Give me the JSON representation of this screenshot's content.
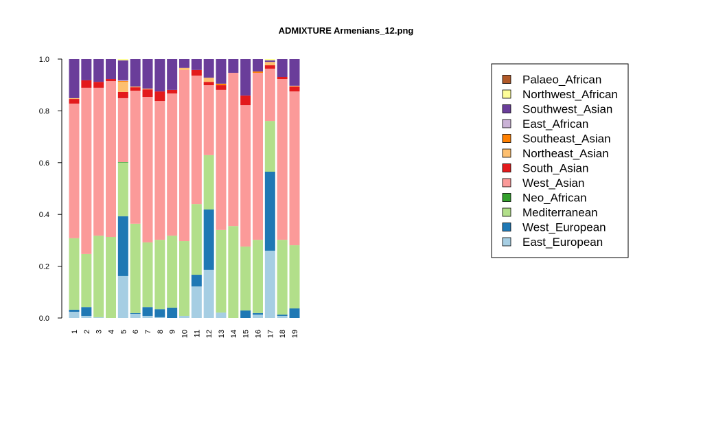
{
  "chart_data": {
    "type": "bar",
    "stacked": true,
    "title": "ADMIXTURE Armenians_12.png",
    "xlabel": "",
    "ylabel": "",
    "ylim": [
      0,
      1
    ],
    "yticks": [
      "0.0",
      "0.2",
      "0.4",
      "0.6",
      "0.8",
      "1.0"
    ],
    "grid": false,
    "legend_position": "right",
    "categories": [
      "1",
      "2",
      "3",
      "4",
      "5",
      "6",
      "7",
      "8",
      "9",
      "10",
      "11",
      "12",
      "13",
      "14",
      "15",
      "16",
      "17",
      "18",
      "19"
    ],
    "series": [
      {
        "name": "East_European",
        "color": "#A6CEE3",
        "values": [
          0.024,
          0.008,
          0.003,
          0,
          0.162,
          0.016,
          0.008,
          0.003,
          0,
          0.008,
          0.122,
          0.186,
          0.021,
          0,
          0,
          0.013,
          0.26,
          0.008,
          0
        ]
      },
      {
        "name": "West_European",
        "color": "#1F78B4",
        "values": [
          0.008,
          0.034,
          0,
          0,
          0.231,
          0.003,
          0.034,
          0.031,
          0.04,
          0,
          0.045,
          0.233,
          0,
          0,
          0.029,
          0.006,
          0.305,
          0.005,
          0.037
        ]
      },
      {
        "name": "Mediterranean",
        "color": "#B2DF8A",
        "values": [
          0.276,
          0.205,
          0.315,
          0.313,
          0.207,
          0.345,
          0.25,
          0.268,
          0.278,
          0.289,
          0.273,
          0.21,
          0.319,
          0.355,
          0.247,
          0.283,
          0.196,
          0.289,
          0.244
        ]
      },
      {
        "name": "Neo_African",
        "color": "#33A02C",
        "values": [
          0,
          0,
          0,
          0,
          0.002,
          0,
          0,
          0,
          0,
          0,
          0,
          0,
          0,
          0,
          0,
          0,
          0,
          0,
          0
        ]
      },
      {
        "name": "West_Asian",
        "color": "#FB9A99",
        "values": [
          0.52,
          0.642,
          0.571,
          0.602,
          0.247,
          0.514,
          0.562,
          0.536,
          0.549,
          0.661,
          0.496,
          0.27,
          0.541,
          0.592,
          0.546,
          0.645,
          0.202,
          0.621,
          0.594
        ]
      },
      {
        "name": "South_Asian",
        "color": "#E31A1C",
        "values": [
          0.018,
          0.029,
          0.023,
          0.008,
          0.024,
          0.013,
          0.029,
          0.037,
          0.014,
          0,
          0.022,
          0.013,
          0.018,
          0,
          0.037,
          0,
          0.013,
          0.008,
          0.019
        ]
      },
      {
        "name": "Northeast_Asian",
        "color": "#FDBF6F",
        "values": [
          0.003,
          0,
          0,
          0,
          0.039,
          0.003,
          0.003,
          0,
          0,
          0.008,
          0,
          0.016,
          0,
          0,
          0,
          0,
          0.013,
          0,
          0.003
        ]
      },
      {
        "name": "Southeast_Asian",
        "color": "#FF7F00",
        "values": [
          0,
          0,
          0,
          0,
          0.003,
          0,
          0,
          0,
          0,
          0,
          0,
          0,
          0.006,
          0,
          0,
          0.005,
          0,
          0,
          0
        ]
      },
      {
        "name": "East_African",
        "color": "#CAB2D6",
        "values": [
          0,
          0,
          0,
          0,
          0.003,
          0,
          0,
          0,
          0,
          0,
          0,
          0,
          0,
          0,
          0,
          0,
          0,
          0,
          0
        ]
      },
      {
        "name": "Southwest_Asian",
        "color": "#6A3D9A",
        "values": [
          0.151,
          0.082,
          0.088,
          0.077,
          0.077,
          0.106,
          0.114,
          0.125,
          0.119,
          0.034,
          0.042,
          0.072,
          0.095,
          0.053,
          0.141,
          0.048,
          0.006,
          0.069,
          0.103
        ]
      },
      {
        "name": "Northwest_African",
        "color": "#FFFF99",
        "values": [
          0,
          0,
          0,
          0,
          0.005,
          0,
          0,
          0,
          0,
          0,
          0,
          0,
          0,
          0,
          0,
          0,
          0.005,
          0,
          0
        ]
      },
      {
        "name": "Palaeo_African",
        "color": "#B15928",
        "values": [
          0,
          0,
          0,
          0,
          0,
          0,
          0,
          0,
          0,
          0,
          0,
          0,
          0,
          0,
          0,
          0,
          0,
          0,
          0
        ]
      }
    ]
  }
}
